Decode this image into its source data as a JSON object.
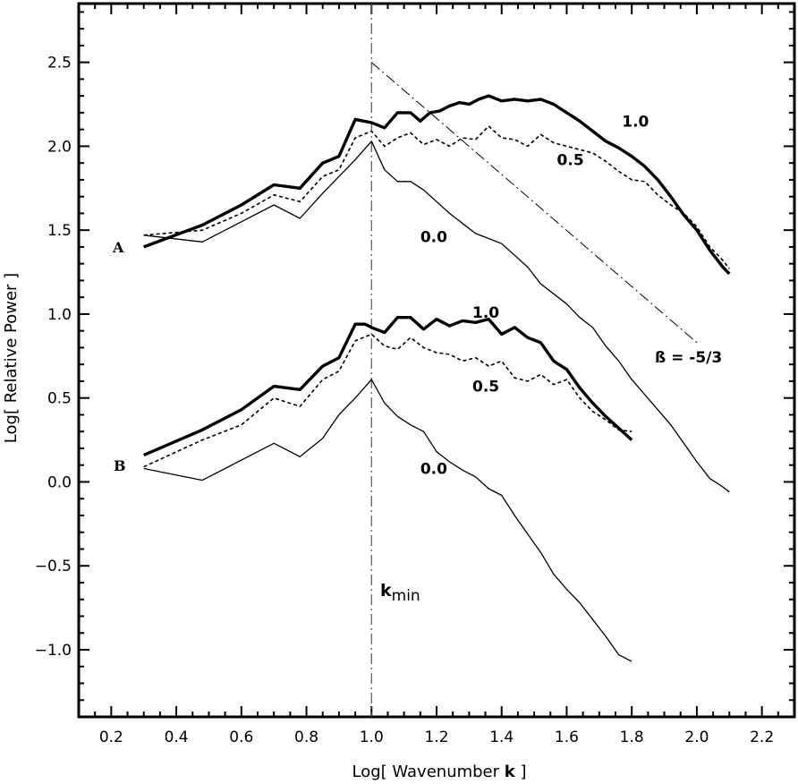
{
  "chart_data": {
    "type": "line",
    "xlabel": "Log[ Wavenumber k ]",
    "xlabel_parts": [
      "Log[ Wavenumber ",
      "k",
      " ]"
    ],
    "ylabel": "Log[ Relative Power ]",
    "xlim": [
      0.1,
      2.3
    ],
    "ylim": [
      -1.4,
      2.85
    ],
    "xticks": [
      0.2,
      0.4,
      0.6,
      0.8,
      1.0,
      1.2,
      1.4,
      1.6,
      1.8,
      2.0,
      2.2
    ],
    "xtick_labels": [
      "0.2",
      "0.4",
      "0.6",
      "0.8",
      "1.0",
      "1.2",
      "1.4",
      "1.6",
      "1.8",
      "2.0",
      "2.2"
    ],
    "yticks": [
      -1.0,
      -0.5,
      0.0,
      0.5,
      1.0,
      1.5,
      2.0,
      2.5
    ],
    "ytick_labels": [
      "−1.0",
      "−0.5",
      "0.0",
      "0.5",
      "1.0",
      "1.5",
      "2.0",
      "2.5"
    ],
    "grid": false,
    "legend": "none",
    "annotations": {
      "set_a": "A",
      "set_b": "B",
      "kmin_main": "k",
      "kmin_sub": "min",
      "beta": "ß = -5/3"
    },
    "vertical_line": {
      "x": 1.0,
      "label": "kmin",
      "style": "dash-dot"
    },
    "reference_slope": {
      "x": [
        1.0,
        2.0
      ],
      "y": [
        2.5,
        0.83
      ],
      "slope": -1.667,
      "style": "dash-dot"
    },
    "series": [
      {
        "group": "A",
        "label": "1.0",
        "style": "thick",
        "label_pos": [
          1.77,
          2.15
        ],
        "x": [
          0.3,
          0.48,
          0.6,
          0.7,
          0.78,
          0.85,
          0.9,
          0.95,
          1.0,
          1.04,
          1.08,
          1.12,
          1.15,
          1.18,
          1.21,
          1.24,
          1.27,
          1.3,
          1.33,
          1.36,
          1.4,
          1.44,
          1.48,
          1.52,
          1.56,
          1.6,
          1.64,
          1.68,
          1.72,
          1.76,
          1.8,
          1.84,
          1.88,
          1.92,
          1.96,
          2.0,
          2.04,
          2.08,
          2.1
        ],
        "y": [
          1.4,
          1.53,
          1.65,
          1.77,
          1.75,
          1.9,
          1.94,
          2.16,
          2.14,
          2.11,
          2.2,
          2.2,
          2.15,
          2.2,
          2.21,
          2.24,
          2.26,
          2.25,
          2.28,
          2.3,
          2.27,
          2.28,
          2.27,
          2.28,
          2.25,
          2.2,
          2.15,
          2.09,
          2.03,
          1.99,
          1.94,
          1.88,
          1.8,
          1.7,
          1.59,
          1.5,
          1.38,
          1.28,
          1.24
        ]
      },
      {
        "group": "A",
        "label": "0.5",
        "style": "dashed",
        "label_pos": [
          1.57,
          1.92
        ],
        "x": [
          0.3,
          0.48,
          0.6,
          0.7,
          0.78,
          0.85,
          0.9,
          0.95,
          1.0,
          1.04,
          1.08,
          1.12,
          1.16,
          1.2,
          1.24,
          1.28,
          1.32,
          1.36,
          1.4,
          1.44,
          1.48,
          1.52,
          1.56,
          1.6,
          1.64,
          1.68,
          1.72,
          1.76,
          1.8,
          1.84,
          1.88,
          1.92,
          1.96,
          2.0,
          2.04,
          2.08,
          2.1
        ],
        "y": [
          1.47,
          1.5,
          1.6,
          1.71,
          1.67,
          1.82,
          1.86,
          2.05,
          2.09,
          2.0,
          2.05,
          2.08,
          2.01,
          2.04,
          2.0,
          2.05,
          2.04,
          2.12,
          2.05,
          2.04,
          2.0,
          2.07,
          2.02,
          2.0,
          1.98,
          1.96,
          1.91,
          1.85,
          1.8,
          1.79,
          1.71,
          1.65,
          1.6,
          1.52,
          1.4,
          1.32,
          1.27
        ]
      },
      {
        "group": "A",
        "label": "0.0",
        "style": "thin",
        "label_pos": [
          1.15,
          1.46
        ],
        "x": [
          0.3,
          0.48,
          0.6,
          0.7,
          0.78,
          0.85,
          0.9,
          0.95,
          1.0,
          1.04,
          1.08,
          1.12,
          1.16,
          1.2,
          1.24,
          1.28,
          1.32,
          1.36,
          1.4,
          1.44,
          1.48,
          1.52,
          1.56,
          1.6,
          1.64,
          1.68,
          1.72,
          1.76,
          1.8,
          1.84,
          1.88,
          1.92,
          1.96,
          2.0,
          2.04,
          2.08,
          2.1
        ],
        "y": [
          1.47,
          1.43,
          1.55,
          1.65,
          1.57,
          1.72,
          1.82,
          1.92,
          2.03,
          1.86,
          1.79,
          1.79,
          1.74,
          1.67,
          1.6,
          1.54,
          1.48,
          1.45,
          1.42,
          1.35,
          1.28,
          1.18,
          1.12,
          1.06,
          0.98,
          0.92,
          0.81,
          0.72,
          0.61,
          0.52,
          0.43,
          0.34,
          0.23,
          0.12,
          0.02,
          -0.03,
          -0.06
        ]
      },
      {
        "group": "B",
        "label": "1.0",
        "style": "thick",
        "label_pos": [
          1.31,
          1.01
        ],
        "x": [
          0.3,
          0.48,
          0.6,
          0.7,
          0.78,
          0.85,
          0.9,
          0.95,
          0.98,
          1.0,
          1.04,
          1.08,
          1.12,
          1.16,
          1.2,
          1.24,
          1.28,
          1.32,
          1.36,
          1.4,
          1.44,
          1.48,
          1.52,
          1.56,
          1.6,
          1.64,
          1.68,
          1.72,
          1.76,
          1.8
        ],
        "y": [
          0.16,
          0.31,
          0.43,
          0.57,
          0.55,
          0.69,
          0.74,
          0.94,
          0.94,
          0.92,
          0.89,
          0.98,
          0.98,
          0.91,
          0.97,
          0.93,
          0.96,
          0.95,
          0.97,
          0.88,
          0.92,
          0.86,
          0.83,
          0.72,
          0.67,
          0.56,
          0.47,
          0.39,
          0.32,
          0.25
        ]
      },
      {
        "group": "B",
        "label": "0.5",
        "style": "dashed",
        "label_pos": [
          1.31,
          0.57
        ],
        "x": [
          0.3,
          0.48,
          0.6,
          0.7,
          0.78,
          0.85,
          0.9,
          0.95,
          1.0,
          1.04,
          1.08,
          1.12,
          1.16,
          1.2,
          1.24,
          1.28,
          1.32,
          1.36,
          1.4,
          1.44,
          1.48,
          1.52,
          1.56,
          1.6,
          1.64,
          1.68,
          1.72,
          1.76,
          1.8
        ],
        "y": [
          0.09,
          0.25,
          0.34,
          0.5,
          0.45,
          0.61,
          0.66,
          0.84,
          0.88,
          0.81,
          0.79,
          0.86,
          0.8,
          0.77,
          0.76,
          0.72,
          0.74,
          0.69,
          0.72,
          0.62,
          0.6,
          0.64,
          0.58,
          0.61,
          0.5,
          0.42,
          0.37,
          0.31,
          0.3
        ]
      },
      {
        "group": "B",
        "label": "0.0",
        "style": "thin",
        "label_pos": [
          1.15,
          0.08
        ],
        "x": [
          0.3,
          0.48,
          0.6,
          0.7,
          0.78,
          0.85,
          0.9,
          0.95,
          1.0,
          1.04,
          1.08,
          1.12,
          1.16,
          1.2,
          1.24,
          1.28,
          1.32,
          1.36,
          1.4,
          1.44,
          1.48,
          1.52,
          1.56,
          1.6,
          1.64,
          1.68,
          1.72,
          1.76,
          1.8
        ],
        "y": [
          0.08,
          0.01,
          0.13,
          0.23,
          0.15,
          0.26,
          0.4,
          0.5,
          0.61,
          0.47,
          0.39,
          0.34,
          0.3,
          0.18,
          0.12,
          0.07,
          0.03,
          -0.04,
          -0.08,
          -0.2,
          -0.31,
          -0.42,
          -0.55,
          -0.64,
          -0.72,
          -0.82,
          -0.92,
          -1.03,
          -1.07
        ]
      }
    ]
  }
}
